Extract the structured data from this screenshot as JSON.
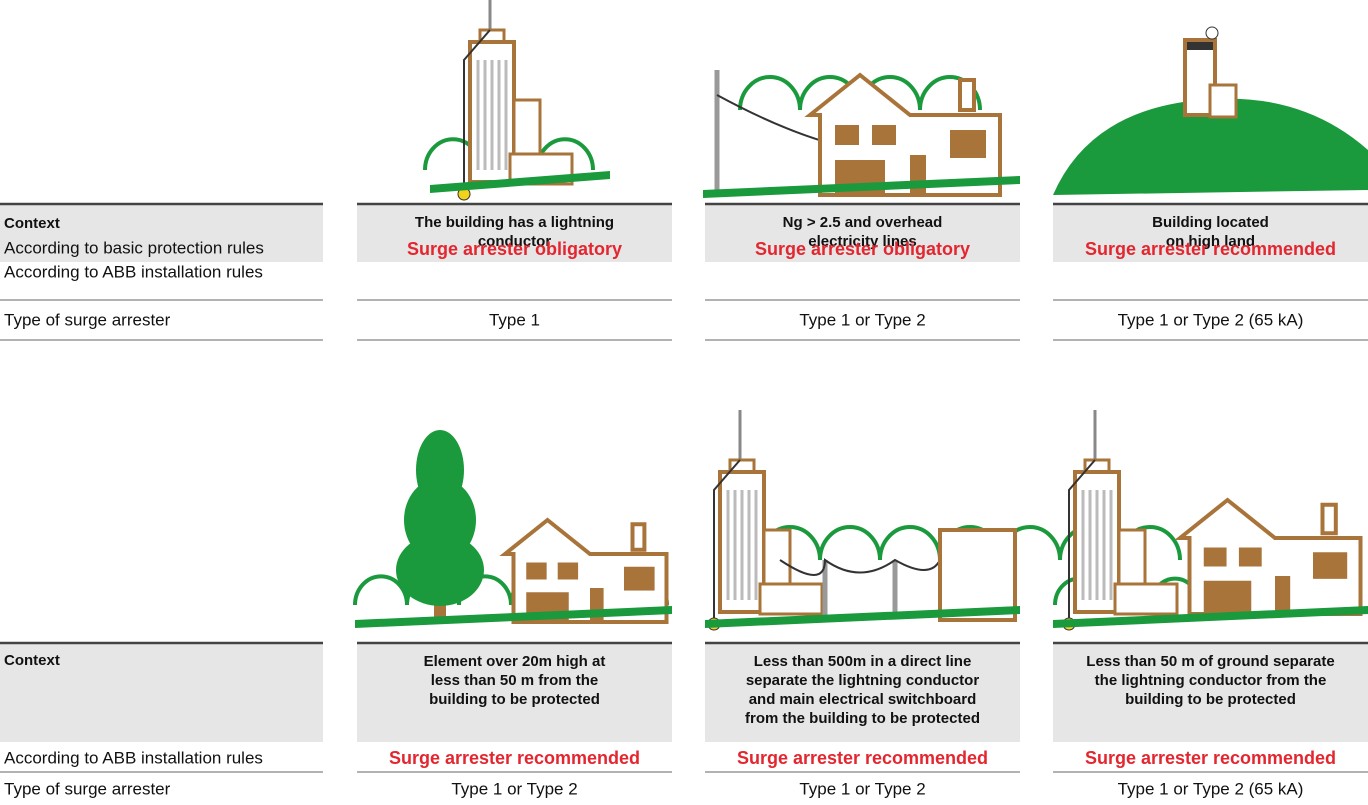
{
  "sections": [
    {
      "row_labels": [
        "Context",
        "According to basic protection rules",
        "According to ABB installation rules",
        "Type of surge arrester"
      ],
      "columns": [
        {
          "context": [
            "The building has a lightning",
            "conductor"
          ],
          "recommendation": "Surge arrester obligatory",
          "type": "Type 1"
        },
        {
          "context": [
            "Ng > 2.5 and overhead",
            "electricity lines"
          ],
          "recommendation": "Surge arrester obligatory",
          "type": "Type 1 or Type 2"
        },
        {
          "context": [
            "Building located",
            "on high land"
          ],
          "recommendation": "Surge arrester recommended",
          "type": "Type 1 or Type 2 (65 kA)"
        }
      ]
    },
    {
      "row_labels": [
        "Context",
        "According to ABB installation rules",
        "Type of surge arrester"
      ],
      "columns": [
        {
          "context": [
            "Element over 20m high at",
            "less than 50 m from the",
            "building to be protected"
          ],
          "recommendation": "Surge arrester recommended",
          "type": "Type 1 or Type 2"
        },
        {
          "context": [
            "Less than 500m in a direct line",
            "separate the lightning conductor",
            "and main electrical switchboard",
            "from the building to be protected"
          ],
          "recommendation": "Surge arrester recommended",
          "type": "Type 1 or Type 2"
        },
        {
          "context": [
            "Less than 50 m of ground separate",
            "the lightning conductor from the",
            "building to be protected"
          ],
          "recommendation": "Surge arrester recommended",
          "type": "Type 1 or Type 2 (65 kA)"
        }
      ]
    }
  ]
}
